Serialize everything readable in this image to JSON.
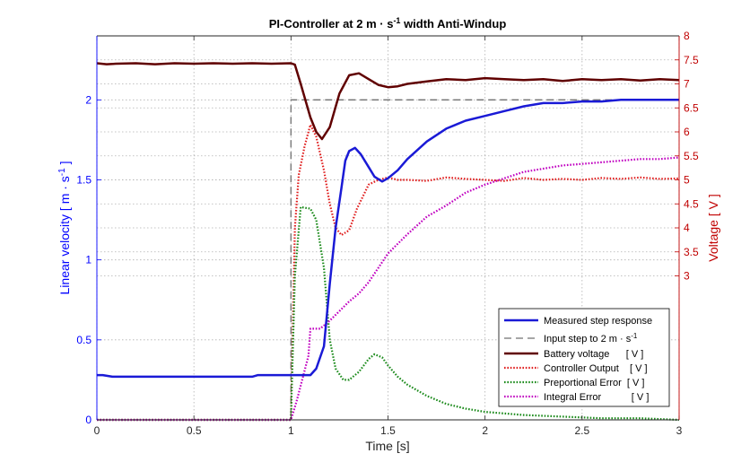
{
  "chart_data": {
    "type": "line",
    "title_parts": {
      "pre": "PI-Controller at 2 m · s",
      "sup": "-1",
      "post": " width Anti-Windup"
    },
    "xlabel": "Time [s]",
    "ylabel_left_parts": {
      "pre": "Linear velocity [ m · s",
      "sup": "-1",
      "post": " ]"
    },
    "ylabel_right": "Voltage [ V ]",
    "xlim": [
      0,
      3
    ],
    "ylim_left": [
      0,
      2.4
    ],
    "ylim_right": [
      0,
      8
    ],
    "xticks": [
      "0",
      "0.5",
      "1",
      "1.5",
      "2",
      "2.5",
      "3"
    ],
    "yticks_left": [
      "0",
      "0.5",
      "1",
      "1.5",
      "2"
    ],
    "yticks_right": [
      "3",
      "3.5",
      "4",
      "4.5",
      "5",
      "5.5",
      "6",
      "6.5",
      "7",
      "7.5",
      "8"
    ],
    "grid": true,
    "legend_position": "bottom-right",
    "colors": {
      "left_axis": "#0000ff",
      "right_axis": "#c00000",
      "grid": "#b0b0b0"
    },
    "series": [
      {
        "name": "Measured step response",
        "style": "solid",
        "width": 2.5,
        "color": "#1a1ad6",
        "axis": "left",
        "x": [
          0,
          0.03,
          0.08,
          0.2,
          0.5,
          0.8,
          0.83,
          1.0,
          1.05,
          1.1,
          1.13,
          1.17,
          1.2,
          1.23,
          1.26,
          1.28,
          1.3,
          1.33,
          1.36,
          1.4,
          1.43,
          1.47,
          1.5,
          1.55,
          1.6,
          1.7,
          1.8,
          1.9,
          2.0,
          2.1,
          2.2,
          2.3,
          2.4,
          2.5,
          2.6,
          2.7,
          2.8,
          2.9,
          3.0
        ],
        "y": [
          0.28,
          0.28,
          0.27,
          0.27,
          0.27,
          0.27,
          0.28,
          0.28,
          0.28,
          0.28,
          0.32,
          0.46,
          0.85,
          1.2,
          1.45,
          1.62,
          1.68,
          1.7,
          1.66,
          1.58,
          1.52,
          1.49,
          1.51,
          1.56,
          1.63,
          1.74,
          1.82,
          1.87,
          1.9,
          1.93,
          1.96,
          1.98,
          1.98,
          1.99,
          1.99,
          2.0,
          2.0,
          2.0,
          2.0
        ]
      },
      {
        "name_parts": {
          "pre": "Input step to 2 m · s",
          "sup": "-1"
        },
        "style": "dashed",
        "width": 1.3,
        "color": "#707070",
        "axis": "left",
        "x": [
          0,
          1.0,
          1.0,
          3.0
        ],
        "y": [
          0,
          0,
          2.0,
          2.0
        ]
      },
      {
        "name": "Battery voltage      [ V ]",
        "style": "solid",
        "width": 2.5,
        "color": "#600000",
        "axis": "right",
        "x": [
          0,
          0.05,
          0.1,
          0.2,
          0.3,
          0.4,
          0.5,
          0.6,
          0.7,
          0.8,
          0.9,
          1.0,
          1.02,
          1.05,
          1.1,
          1.13,
          1.16,
          1.2,
          1.25,
          1.3,
          1.35,
          1.4,
          1.45,
          1.5,
          1.55,
          1.6,
          1.7,
          1.8,
          1.9,
          2.0,
          2.1,
          2.2,
          2.3,
          2.4,
          2.5,
          2.6,
          2.7,
          2.8,
          2.9,
          3.0
        ],
        "y": [
          7.43,
          7.41,
          7.42,
          7.43,
          7.41,
          7.43,
          7.42,
          7.43,
          7.42,
          7.43,
          7.42,
          7.43,
          7.4,
          7.0,
          6.3,
          6.0,
          5.85,
          6.1,
          6.8,
          7.18,
          7.22,
          7.1,
          6.98,
          6.93,
          6.95,
          7.0,
          7.05,
          7.1,
          7.08,
          7.12,
          7.1,
          7.08,
          7.1,
          7.06,
          7.1,
          7.08,
          7.1,
          7.07,
          7.1,
          7.08
        ]
      },
      {
        "name": "Controller Output    [ V ]",
        "style": "dotted",
        "width": 2.2,
        "color": "#e02020",
        "axis": "right",
        "x": [
          0,
          1.0,
          1.02,
          1.04,
          1.07,
          1.1,
          1.13,
          1.17,
          1.2,
          1.23,
          1.26,
          1.3,
          1.34,
          1.4,
          1.45,
          1.5,
          1.55,
          1.6,
          1.7,
          1.8,
          1.9,
          2.0,
          2.1,
          2.2,
          2.3,
          2.4,
          2.5,
          2.6,
          2.7,
          2.8,
          2.9,
          3.0
        ],
        "y": [
          0,
          0,
          4.0,
          5.1,
          5.7,
          6.15,
          5.9,
          5.2,
          4.5,
          4.0,
          3.85,
          3.95,
          4.4,
          4.9,
          5.0,
          5.05,
          5.0,
          5.0,
          4.98,
          5.05,
          5.02,
          5.0,
          4.98,
          5.04,
          5.0,
          5.02,
          5.0,
          5.04,
          5.02,
          5.05,
          5.02,
          5.03
        ]
      },
      {
        "name": "Preportional Error  [ V ]",
        "style": "dotted",
        "width": 2.2,
        "color": "#1a8a1a",
        "axis": "left",
        "x": [
          0,
          1.0,
          1.02,
          1.05,
          1.1,
          1.13,
          1.17,
          1.2,
          1.23,
          1.27,
          1.3,
          1.35,
          1.4,
          1.43,
          1.47,
          1.5,
          1.55,
          1.6,
          1.7,
          1.8,
          1.9,
          2.0,
          2.2,
          2.4,
          2.6,
          2.8,
          3.0
        ],
        "y": [
          0,
          0,
          0.9,
          1.33,
          1.32,
          1.25,
          0.95,
          0.5,
          0.32,
          0.25,
          0.25,
          0.3,
          0.38,
          0.41,
          0.39,
          0.34,
          0.27,
          0.22,
          0.15,
          0.1,
          0.07,
          0.05,
          0.03,
          0.02,
          0.01,
          0.01,
          0.0
        ]
      },
      {
        "name": "Integral Error           [ V ]",
        "style": "dotted",
        "width": 2.2,
        "color": "#c000c0",
        "axis": "left",
        "x": [
          0,
          1.0,
          1.03,
          1.06,
          1.09,
          1.1,
          1.15,
          1.2,
          1.25,
          1.3,
          1.35,
          1.4,
          1.45,
          1.5,
          1.6,
          1.7,
          1.8,
          1.9,
          2.0,
          2.1,
          2.2,
          2.3,
          2.4,
          2.5,
          2.6,
          2.7,
          2.8,
          2.9,
          3.0
        ],
        "y": [
          0,
          0,
          0.12,
          0.26,
          0.4,
          0.57,
          0.57,
          0.62,
          0.68,
          0.74,
          0.79,
          0.86,
          0.95,
          1.04,
          1.16,
          1.27,
          1.34,
          1.42,
          1.47,
          1.51,
          1.55,
          1.57,
          1.59,
          1.6,
          1.61,
          1.62,
          1.63,
          1.63,
          1.64
        ]
      }
    ]
  }
}
